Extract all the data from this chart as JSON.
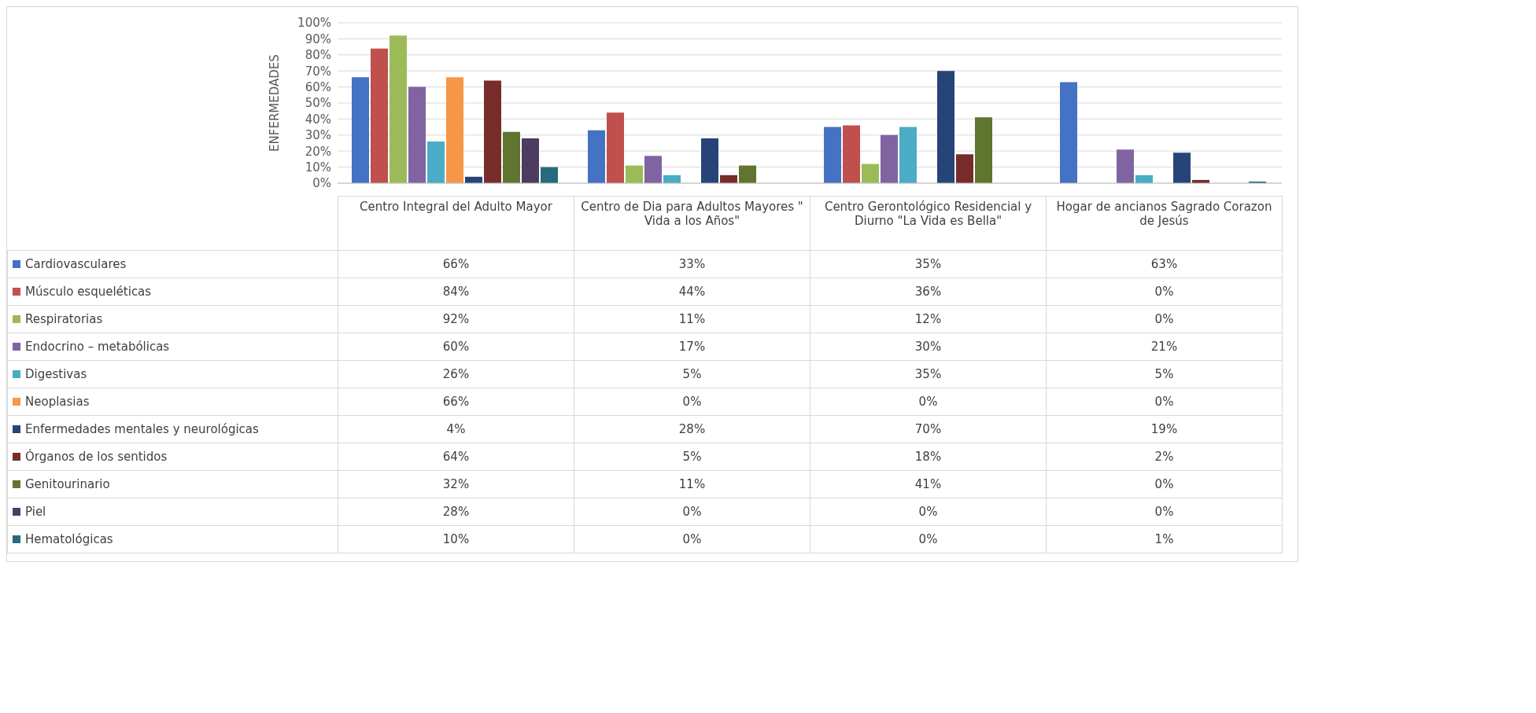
{
  "chart_data": {
    "type": "bar",
    "ylabel": "ENFERMEDADES",
    "categories": [
      "Centro Integral del Adulto Mayor",
      "Centro de Dia para Adultos Mayores \" Vida a los Años\"",
      "Centro Gerontológico Residencial y Diurno \"La Vida es Bella\"",
      "Hogar de ancianos Sagrado Corazon de Jesús"
    ],
    "series": [
      {
        "name": "Cardiovasculares",
        "color": "#4472c4",
        "values": [
          66,
          33,
          35,
          63
        ],
        "value_labels": [
          "66%",
          "33%",
          "35%",
          "63%"
        ]
      },
      {
        "name": "Músculo esqueléticas",
        "color": "#c0504d",
        "values": [
          84,
          44,
          36,
          0
        ],
        "value_labels": [
          "84%",
          "44%",
          "36%",
          "0%"
        ]
      },
      {
        "name": "Respiratorias",
        "color": "#9bbb59",
        "values": [
          92,
          11,
          12,
          0
        ],
        "value_labels": [
          "92%",
          "11%",
          "12%",
          "0%"
        ]
      },
      {
        "name": "Endocrino – metabólicas",
        "color": "#8064a2",
        "values": [
          60,
          17,
          30,
          21
        ],
        "value_labels": [
          "60%",
          "17%",
          "30%",
          "21%"
        ]
      },
      {
        "name": "Digestivas",
        "color": "#4bacc6",
        "values": [
          26,
          5,
          35,
          5
        ],
        "value_labels": [
          "26%",
          "5%",
          "35%",
          "5%"
        ]
      },
      {
        "name": "Neoplasias",
        "color": "#f79646",
        "values": [
          66,
          0,
          0,
          0
        ],
        "value_labels": [
          "66%",
          "0%",
          "0%",
          "0%"
        ]
      },
      {
        "name": "Enfermedades mentales y neurológicas",
        "color": "#264478",
        "values": [
          4,
          28,
          70,
          19
        ],
        "value_labels": [
          "4%",
          "28%",
          "70%",
          "19%"
        ]
      },
      {
        "name": "Órganos de los sentidos",
        "color": "#772c2a",
        "values": [
          64,
          5,
          18,
          2
        ],
        "value_labels": [
          "64%",
          "5%",
          "18%",
          "2%"
        ]
      },
      {
        "name": "Genitourinario",
        "color": "#5f7530",
        "values": [
          32,
          11,
          41,
          0
        ],
        "value_labels": [
          "32%",
          "11%",
          "41%",
          "0%"
        ]
      },
      {
        "name": "Piel",
        "color": "#4d3b62",
        "values": [
          28,
          0,
          0,
          0
        ],
        "value_labels": [
          "28%",
          "0%",
          "0%",
          "0%"
        ]
      },
      {
        "name": "Hematológicas",
        "color": "#276a7c",
        "values": [
          10,
          0,
          0,
          1
        ],
        "value_labels": [
          "10%",
          "0%",
          "0%",
          "1%"
        ]
      }
    ],
    "ylim": [
      0,
      100
    ],
    "yticks": [
      {
        "value": 0,
        "label": "0%"
      },
      {
        "value": 10,
        "label": "10%"
      },
      {
        "value": 20,
        "label": "20%"
      },
      {
        "value": 30,
        "label": "30%"
      },
      {
        "value": 40,
        "label": "40%"
      },
      {
        "value": 50,
        "label": "50%"
      },
      {
        "value": 60,
        "label": "60%"
      },
      {
        "value": 70,
        "label": "70%"
      },
      {
        "value": 80,
        "label": "80%"
      },
      {
        "value": 90,
        "label": "90%"
      },
      {
        "value": 100,
        "label": "100%"
      }
    ],
    "grid": "y",
    "legend": "bottom"
  }
}
